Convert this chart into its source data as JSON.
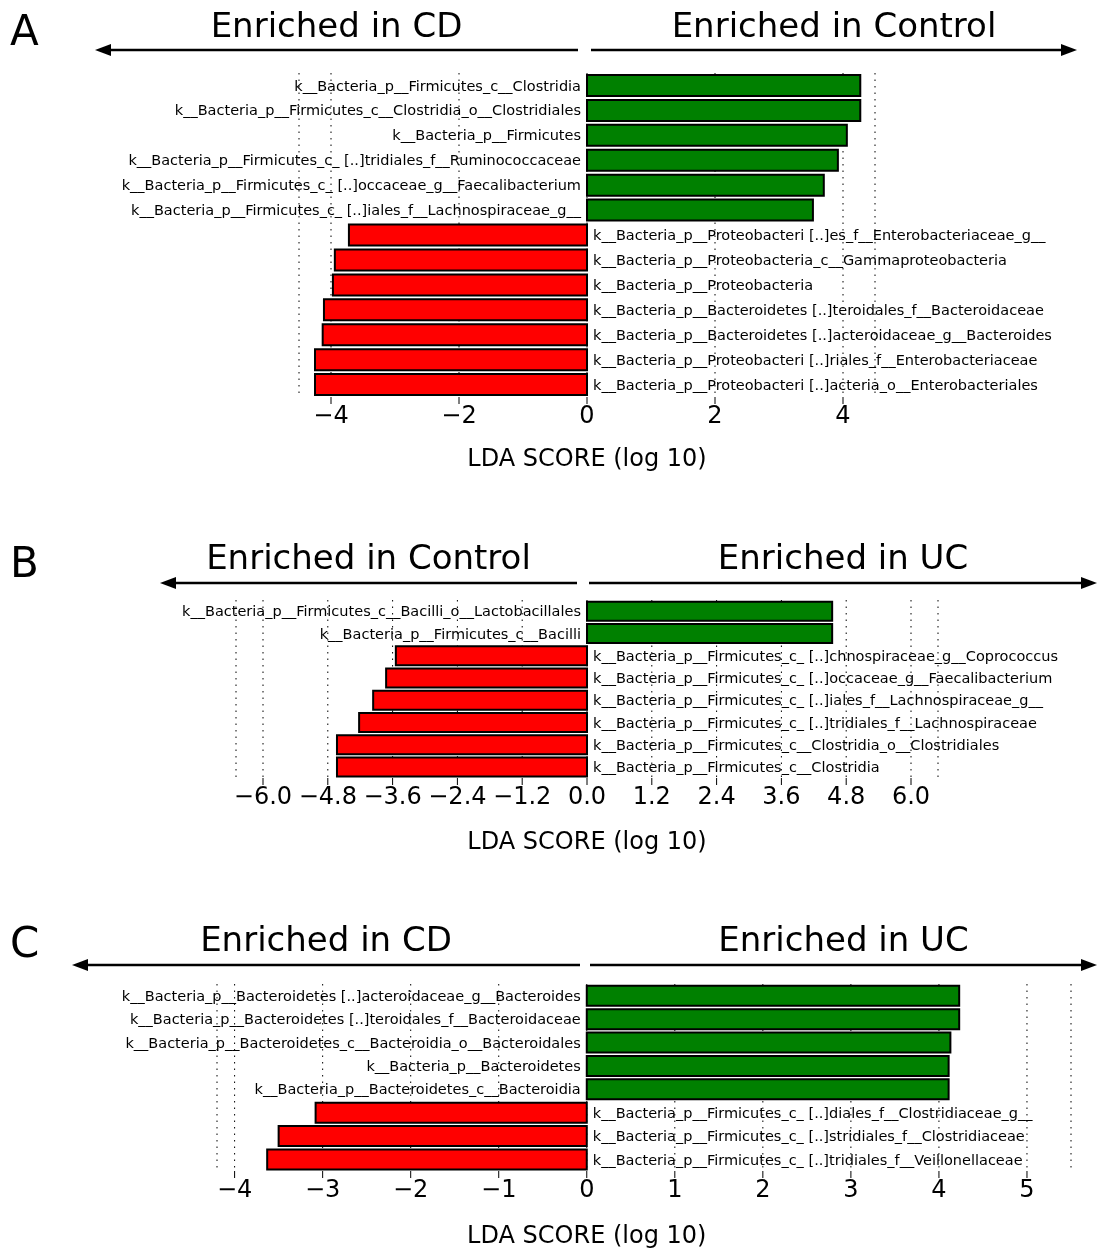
{
  "chart_data": [
    {
      "type": "bar",
      "orientation": "horizontal",
      "title": "A",
      "annotations": [
        "Enriched in CD",
        "Enriched in Control"
      ],
      "xlabel": "LDA SCORE (log 10)",
      "categories": [
        "k__Bacteria_p__Firmicutes_c__Clostridia",
        "k__Bacteria_p__Firmicutes_c__Clostridia_o__Clostridiales",
        "k__Bacteria_p__Firmicutes",
        "k__Bacteria_p__Firmicutes_c_ [..]tridiales_f__Ruminococcaceae",
        "k__Bacteria_p__Firmicutes_c_ [..]occaceae_g__Faecalibacterium",
        "k__Bacteria_p__Firmicutes_c_ [..]iales_f__Lachnospiraceae_g__",
        "k__Bacteria_p__Proteobacteri [..]es_f__Enterobacteriaceae_g__",
        "k__Bacteria_p__Proteobacteria_c__Gammaproteobacteria",
        "k__Bacteria_p__Proteobacteria",
        "k__Bacteria_p__Bacteroidetes [..]teroidales_f__Bacteroidaceae",
        "k__Bacteria_p__Bacteroidetes [..]acteroidaceae_g__Bacteroides",
        "k__Bacteria_p__Proteobacteri [..]riales_f__Enterobacteriaceae",
        "k__Bacteria_p__Proteobacteri [..]acteria_o__Enterobacteriales"
      ],
      "values": [
        4.27,
        4.27,
        4.06,
        3.92,
        3.7,
        3.53,
        -3.72,
        -3.94,
        -3.97,
        -4.11,
        -4.13,
        -4.25,
        -4.25
      ],
      "colors": [
        "#008000",
        "#008000",
        "#008000",
        "#008000",
        "#008000",
        "#008000",
        "#ff0000",
        "#ff0000",
        "#ff0000",
        "#ff0000",
        "#ff0000",
        "#ff0000",
        "#ff0000"
      ],
      "xlim": [
        -4.5,
        4.5
      ],
      "xticks": [
        {
          "value": -4,
          "label": "−4"
        },
        {
          "value": -2,
          "label": "−2"
        },
        0,
        2,
        4
      ],
      "grid": "x"
    },
    {
      "type": "bar",
      "orientation": "horizontal",
      "title": "B",
      "annotations": [
        "Enriched in Control",
        "Enriched in UC"
      ],
      "xlabel": "LDA SCORE (log 10)",
      "categories": [
        "k__Bacteria_p__Firmicutes_c__Bacilli_o__Lactobacillales",
        "k__Bacteria_p__Firmicutes_c__Bacilli",
        "k__Bacteria_p__Firmicutes_c_ [..]chnospiraceae_g__Coprococcus",
        "k__Bacteria_p__Firmicutes_c_ [..]occaceae_g__Faecalibacterium",
        "k__Bacteria_p__Firmicutes_c_ [..]iales_f__Lachnospiraceae_g__",
        "k__Bacteria_p__Firmicutes_c_ [..]tridiales_f__Lachnospiraceae",
        "k__Bacteria_p__Firmicutes_c__Clostridia_o__Clostridiales",
        "k__Bacteria_p__Firmicutes_c__Clostridia"
      ],
      "values": [
        4.54,
        4.54,
        -3.54,
        -3.72,
        -3.96,
        -4.22,
        -4.63,
        -4.63
      ],
      "colors": [
        "#008000",
        "#008000",
        "#ff0000",
        "#ff0000",
        "#ff0000",
        "#ff0000",
        "#ff0000",
        "#ff0000"
      ],
      "xlim": [
        -6.5,
        6.5
      ],
      "xticks": [
        {
          "value": -6,
          "label": "−6.0"
        },
        {
          "value": -4.8,
          "label": "−4.8"
        },
        {
          "value": -3.6,
          "label": "−3.6"
        },
        {
          "value": -2.4,
          "label": "−2.4"
        },
        {
          "value": -1.2,
          "label": "−1.2"
        },
        {
          "value": 0,
          "label": "0.0"
        },
        1.2,
        2.4,
        3.6,
        4.8,
        {
          "value": 6,
          "label": "6.0"
        }
      ],
      "grid": "x"
    },
    {
      "type": "bar",
      "orientation": "horizontal",
      "title": "C",
      "annotations": [
        "Enriched in CD",
        "Enriched in UC"
      ],
      "xlabel": "LDA SCORE (log 10)",
      "categories": [
        "k__Bacteria_p__Bacteroidetes [..]acteroidaceae_g__Bacteroides",
        "k__Bacteria_p__Bacteroidetes [..]teroidales_f__Bacteroidaceae",
        "k__Bacteria_p__Bacteroidetes_c__Bacteroidia_o__Bacteroidales",
        "k__Bacteria_p__Bacteroidetes",
        "k__Bacteria_p__Bacteroidetes_c__Bacteroidia",
        "k__Bacteria_p__Firmicutes_c_ [..]diales_f__Clostridiaceae_g__",
        "k__Bacteria_p__Firmicutes_c_ [..]stridiales_f__Clostridiaceae",
        "k__Bacteria_p__Firmicutes_c_ [..]tridiales_f__Veillonellaceae"
      ],
      "values": [
        4.23,
        4.23,
        4.13,
        4.11,
        4.11,
        -3.08,
        -3.5,
        -3.63
      ],
      "colors": [
        "#008000",
        "#008000",
        "#008000",
        "#008000",
        "#008000",
        "#ff0000",
        "#ff0000",
        "#ff0000"
      ],
      "xlim": [
        -4.2,
        5.5
      ],
      "xticks": [
        {
          "value": -4,
          "label": "−4"
        },
        {
          "value": -3,
          "label": "−3"
        },
        {
          "value": -2,
          "label": "−2"
        },
        {
          "value": -1,
          "label": "−1"
        },
        0,
        1,
        2,
        3,
        4,
        5
      ],
      "grid": "x"
    }
  ]
}
